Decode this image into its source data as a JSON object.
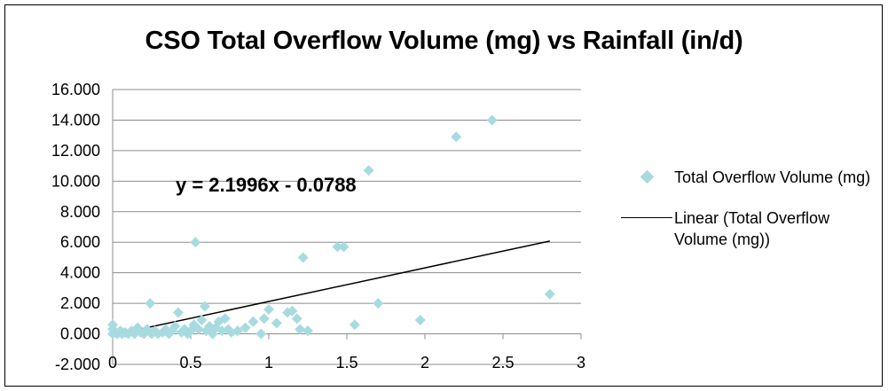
{
  "chart_data": {
    "type": "scatter",
    "title": "CSO Total Overflow Volume (mg) vs Rainfall (in/d)",
    "xlabel": "",
    "ylabel": "",
    "xlim": [
      0,
      3
    ],
    "ylim": [
      -2,
      16
    ],
    "x_ticks": [
      "0",
      "0.5",
      "1",
      "1.5",
      "2",
      "2.5",
      "3"
    ],
    "y_ticks": [
      "-2.000",
      "0.000",
      "2.000",
      "4.000",
      "6.000",
      "8.000",
      "10.000",
      "12.000",
      "14.000",
      "16.000"
    ],
    "grid": "horizontal",
    "legend_position": "right",
    "series": [
      {
        "name": "Total Overflow Volume (mg)",
        "marker": "diamond",
        "color": "#a8dbe0",
        "points": [
          [
            0.0,
            0.6
          ],
          [
            0.0,
            0.3
          ],
          [
            0.0,
            0.0
          ],
          [
            0.02,
            0.1
          ],
          [
            0.03,
            0.0
          ],
          [
            0.05,
            0.2
          ],
          [
            0.06,
            0.0
          ],
          [
            0.08,
            0.1
          ],
          [
            0.1,
            0.0
          ],
          [
            0.12,
            0.2
          ],
          [
            0.14,
            0.0
          ],
          [
            0.16,
            0.4
          ],
          [
            0.18,
            0.1
          ],
          [
            0.2,
            0.0
          ],
          [
            0.22,
            0.3
          ],
          [
            0.24,
            2.0
          ],
          [
            0.25,
            0.0
          ],
          [
            0.27,
            0.2
          ],
          [
            0.29,
            0.0
          ],
          [
            0.32,
            0.1
          ],
          [
            0.34,
            0.3
          ],
          [
            0.36,
            0.0
          ],
          [
            0.38,
            0.2
          ],
          [
            0.4,
            0.5
          ],
          [
            0.42,
            1.4
          ],
          [
            0.44,
            0.1
          ],
          [
            0.46,
            0.3
          ],
          [
            0.48,
            0.0
          ],
          [
            0.5,
            0.2
          ],
          [
            0.52,
            0.6
          ],
          [
            0.53,
            6.0
          ],
          [
            0.55,
            0.3
          ],
          [
            0.57,
            0.9
          ],
          [
            0.59,
            1.8
          ],
          [
            0.6,
            0.2
          ],
          [
            0.62,
            0.5
          ],
          [
            0.64,
            0.0
          ],
          [
            0.66,
            0.4
          ],
          [
            0.68,
            0.8
          ],
          [
            0.7,
            0.2
          ],
          [
            0.72,
            1.0
          ],
          [
            0.74,
            0.3
          ],
          [
            0.76,
            0.1
          ],
          [
            0.8,
            0.2
          ],
          [
            0.85,
            0.4
          ],
          [
            0.9,
            0.8
          ],
          [
            0.95,
            0.0
          ],
          [
            0.97,
            1.0
          ],
          [
            1.0,
            1.6
          ],
          [
            1.05,
            0.7
          ],
          [
            1.12,
            1.4
          ],
          [
            1.15,
            1.5
          ],
          [
            1.18,
            1.0
          ],
          [
            1.2,
            0.3
          ],
          [
            1.22,
            5.0
          ],
          [
            1.25,
            0.2
          ],
          [
            1.44,
            5.7
          ],
          [
            1.48,
            5.7
          ],
          [
            1.55,
            0.6
          ],
          [
            1.64,
            10.7
          ],
          [
            1.7,
            2.0
          ],
          [
            1.97,
            0.9
          ],
          [
            2.2,
            12.9
          ],
          [
            2.43,
            14.0
          ],
          [
            2.8,
            2.6
          ]
        ]
      },
      {
        "name": "Linear (Total Overflow Volume (mg))",
        "color": "#000000",
        "slope": 2.1996,
        "intercept": -0.0788,
        "x_range": [
          0,
          2.8
        ]
      }
    ],
    "annotation": "y = 2.1996x - 0.0788"
  }
}
